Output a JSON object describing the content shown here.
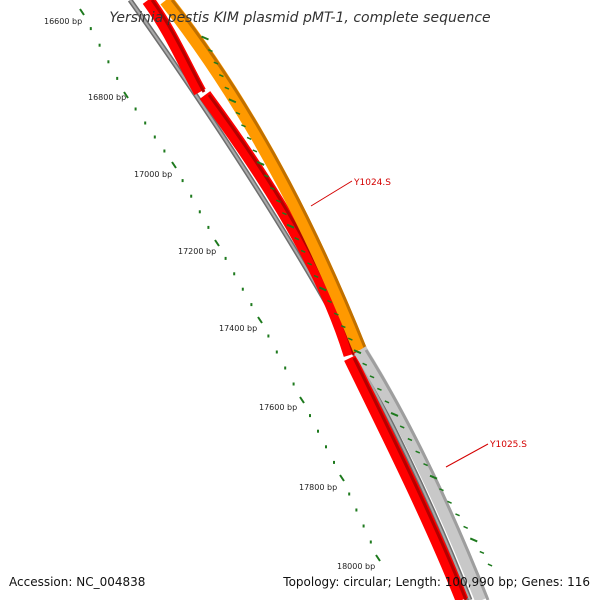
{
  "title": "Yersinia pestis KIM plasmid pMT-1, complete sequence",
  "accession": "Accession: NC_004838",
  "summary": "Topology: circular; Length: 100,990 bp; Genes: 116",
  "ticks": [
    {
      "label": "16600 bp"
    },
    {
      "label": "16800 bp"
    },
    {
      "label": "17000 bp"
    },
    {
      "label": "17200 bp"
    },
    {
      "label": "17400 bp"
    },
    {
      "label": "17600 bp"
    },
    {
      "label": "17800 bp"
    },
    {
      "label": "18000 bp"
    }
  ],
  "genes": [
    {
      "name": "Y1024.S",
      "color": "#ff9900"
    },
    {
      "name": "Y1025.S",
      "color": "#c8c8c8"
    }
  ],
  "colors": {
    "cds": "#ff0000",
    "backbone": "#7f7f7f",
    "tick": "#1e7a1e"
  }
}
